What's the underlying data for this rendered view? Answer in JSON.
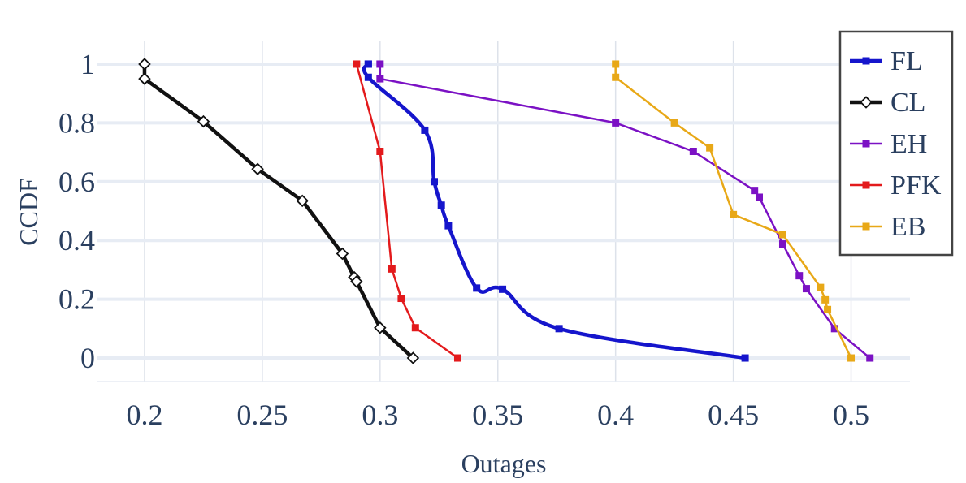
{
  "chart_data": {
    "type": "line",
    "xlabel": "Outages",
    "ylabel": "CCDF",
    "xlim": [
      0.18,
      0.525
    ],
    "ylim": [
      -0.08,
      1.08
    ],
    "xticks": [
      0.2,
      0.25,
      0.3,
      0.35,
      0.4,
      0.45,
      0.5
    ],
    "xtick_labels": [
      "0.2",
      "0.25",
      "0.3",
      "0.35",
      "0.4",
      "0.45",
      "0.5"
    ],
    "yticks": [
      0,
      0.2,
      0.4,
      0.6,
      0.8,
      1
    ],
    "ytick_labels": [
      "0",
      "0.2",
      "0.4",
      "0.6",
      "0.8",
      "1"
    ],
    "grid": true,
    "legend_position": "top-right",
    "series": [
      {
        "name": "FL",
        "color": "#1515cc",
        "marker": "square",
        "smooth": true,
        "x": [
          0.295,
          0.295,
          0.295,
          0.319,
          0.323,
          0.326,
          0.329,
          0.341,
          0.352,
          0.376,
          0.455
        ],
        "y": [
          1.0,
          1.0,
          0.955,
          0.775,
          0.6,
          0.52,
          0.45,
          0.238,
          0.234,
          0.1,
          0.0
        ]
      },
      {
        "name": "CL",
        "color": "#111111",
        "marker": "diamond-open",
        "smooth": false,
        "x": [
          0.2,
          0.2,
          0.225,
          0.248,
          0.267,
          0.284,
          0.289,
          0.29,
          0.3,
          0.314
        ],
        "y": [
          1.0,
          0.95,
          0.805,
          0.643,
          0.535,
          0.355,
          0.275,
          0.26,
          0.103,
          0.0
        ]
      },
      {
        "name": "EH",
        "color": "#7b11c4",
        "marker": "square",
        "smooth": false,
        "x": [
          0.3,
          0.3,
          0.4,
          0.433,
          0.459,
          0.461,
          0.471,
          0.478,
          0.481,
          0.493,
          0.508
        ],
        "y": [
          1.0,
          0.95,
          0.8,
          0.703,
          0.57,
          0.547,
          0.388,
          0.28,
          0.236,
          0.1,
          0.0
        ]
      },
      {
        "name": "PFK",
        "color": "#e31a1c",
        "marker": "square",
        "smooth": false,
        "x": [
          0.29,
          0.3,
          0.305,
          0.309,
          0.315,
          0.333
        ],
        "y": [
          1.0,
          0.703,
          0.303,
          0.203,
          0.103,
          0.0
        ]
      },
      {
        "name": "EB",
        "color": "#e8a817",
        "marker": "square",
        "smooth": false,
        "x": [
          0.4,
          0.4,
          0.425,
          0.44,
          0.45,
          0.471,
          0.487,
          0.489,
          0.49,
          0.5
        ],
        "y": [
          1.0,
          0.955,
          0.8,
          0.715,
          0.488,
          0.42,
          0.24,
          0.198,
          0.165,
          0.0
        ]
      }
    ]
  }
}
